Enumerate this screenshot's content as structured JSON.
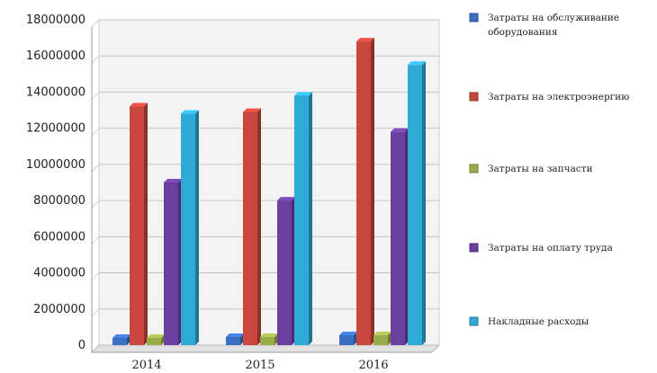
{
  "chart_data": {
    "type": "bar",
    "title": "",
    "xlabel": "",
    "ylabel": "",
    "categories": [
      "2014",
      "2015",
      "2016"
    ],
    "ylim": [
      0,
      18000000
    ],
    "yticks": [
      0,
      2000000,
      4000000,
      6000000,
      8000000,
      10000000,
      12000000,
      14000000,
      16000000,
      18000000
    ],
    "grid": true,
    "legend_position": "right",
    "series": [
      {
        "name": "Затраты на обслуживание оборудования",
        "color": "#3b6fc4",
        "values": [
          400000,
          450000,
          550000
        ]
      },
      {
        "name": "Затраты на электроэнергию",
        "color": "#c8463c",
        "values": [
          13200000,
          12900000,
          16800000
        ]
      },
      {
        "name": "Затраты на запчасти",
        "color": "#9aab4a",
        "values": [
          400000,
          450000,
          550000
        ]
      },
      {
        "name": "Затраты на оплату труда",
        "color": "#6a3fa0",
        "values": [
          9000000,
          8000000,
          11800000
        ]
      },
      {
        "name": "Накладные расходы",
        "color": "#2fa9d6",
        "values": [
          12800000,
          13800000,
          15500000
        ]
      }
    ]
  }
}
